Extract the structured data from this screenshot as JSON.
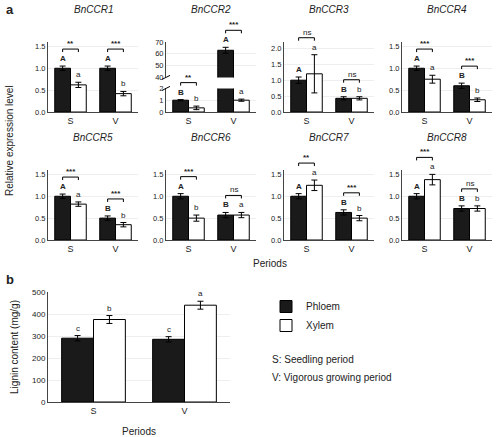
{
  "chart_data": [
    {
      "type": "bar",
      "title": "BnCCR1",
      "categories": [
        "S",
        "V"
      ],
      "series": [
        {
          "name": "Phloem",
          "color": "#1a1a1a",
          "values": [
            1.0,
            1.0
          ],
          "errors": [
            0.05,
            0.05
          ],
          "letters": [
            "A",
            "A"
          ]
        },
        {
          "name": "Xylem",
          "color": "#ffffff",
          "values": [
            0.62,
            0.42
          ],
          "errors": [
            0.06,
            0.05
          ],
          "letters": [
            "a",
            "b"
          ]
        }
      ],
      "significance": [
        "**",
        "***"
      ],
      "ylim": [
        0,
        1.6
      ],
      "yticks": [
        {
          "value": 0.0,
          "label": "0.0"
        },
        0.5,
        {
          "value": 1.0,
          "label": "1.0"
        },
        1.5
      ],
      "grid": true
    },
    {
      "type": "bar",
      "title": "BnCCR2",
      "categories": [
        "S",
        "V"
      ],
      "series": [
        {
          "name": "Phloem",
          "color": "#1a1a1a",
          "values": [
            1.0,
            63.0
          ],
          "errors": [
            0.05,
            2.5
          ],
          "letters": [
            "B",
            "A"
          ]
        },
        {
          "name": "Xylem",
          "color": "#ffffff",
          "values": [
            0.35,
            1.0
          ],
          "errors": [
            0.15,
            0.09
          ],
          "letters": [
            "b",
            "a"
          ]
        }
      ],
      "significance": [
        "**",
        "***"
      ],
      "ylim": [
        0,
        70
      ],
      "yticks": [
        0,
        1,
        2,
        40,
        50,
        60,
        70
      ],
      "grid": true
    },
    {
      "type": "bar",
      "title": "BnCCR3",
      "categories": [
        "S",
        "V"
      ],
      "series": [
        {
          "name": "Phloem",
          "color": "#1a1a1a",
          "values": [
            1.0,
            0.43
          ],
          "errors": [
            0.1,
            0.05
          ],
          "letters": [
            "A",
            "B"
          ]
        },
        {
          "name": "Xylem",
          "color": "#ffffff",
          "values": [
            1.2,
            0.43
          ],
          "errors": [
            0.6,
            0.05
          ],
          "letters": [
            "a",
            "b"
          ]
        }
      ],
      "significance": [
        "ns",
        "ns"
      ],
      "ylim": [
        0,
        2.2
      ],
      "yticks": [
        {
          "value": 0.0,
          "label": "0.0"
        },
        0.5,
        {
          "value": 1.0,
          "label": "1.0"
        },
        1.5,
        {
          "value": 2.0,
          "label": "2.0"
        }
      ],
      "grid": true
    },
    {
      "type": "bar",
      "title": "BnCCR4",
      "categories": [
        "S",
        "V"
      ],
      "series": [
        {
          "name": "Phloem",
          "color": "#1a1a1a",
          "values": [
            1.0,
            0.6
          ],
          "errors": [
            0.05,
            0.06
          ],
          "letters": [
            "A",
            "B"
          ]
        },
        {
          "name": "Xylem",
          "color": "#ffffff",
          "values": [
            0.75,
            0.28
          ],
          "errors": [
            0.09,
            0.04
          ],
          "letters": [
            "a",
            "b"
          ]
        }
      ],
      "significance": [
        "***",
        "***"
      ],
      "ylim": [
        0,
        1.6
      ],
      "yticks": [
        {
          "value": 0.0,
          "label": "0.0"
        },
        0.5,
        {
          "value": 1.0,
          "label": "1.0"
        },
        1.5
      ],
      "grid": true
    },
    {
      "type": "bar",
      "title": "BnCCR5",
      "categories": [
        "S",
        "V"
      ],
      "series": [
        {
          "name": "Phloem",
          "color": "#1a1a1a",
          "values": [
            1.0,
            0.5
          ],
          "errors": [
            0.05,
            0.05
          ],
          "letters": [
            "A",
            "B"
          ]
        },
        {
          "name": "Xylem",
          "color": "#ffffff",
          "values": [
            0.82,
            0.35
          ],
          "errors": [
            0.05,
            0.05
          ],
          "letters": [
            "a",
            "b"
          ]
        }
      ],
      "significance": [
        "***",
        "***"
      ],
      "ylim": [
        0,
        1.6
      ],
      "yticks": [
        {
          "value": 0.0,
          "label": "0.0"
        },
        0.5,
        {
          "value": 1.0,
          "label": "1.0"
        },
        1.5
      ],
      "grid": true
    },
    {
      "type": "bar",
      "title": "BnCCR6",
      "categories": [
        "S",
        "V"
      ],
      "series": [
        {
          "name": "Phloem",
          "color": "#1a1a1a",
          "values": [
            1.0,
            0.57
          ],
          "errors": [
            0.06,
            0.06
          ],
          "letters": [
            "A",
            "B"
          ]
        },
        {
          "name": "Xylem",
          "color": "#ffffff",
          "values": [
            0.5,
            0.57
          ],
          "errors": [
            0.07,
            0.06
          ],
          "letters": [
            "b",
            "a"
          ]
        }
      ],
      "significance": [
        "***",
        "ns"
      ],
      "ylim": [
        0,
        1.6
      ],
      "yticks": [
        {
          "value": 0.0,
          "label": "0.0"
        },
        0.5,
        {
          "value": 1.0,
          "label": "1.0"
        },
        1.5
      ],
      "grid": true
    },
    {
      "type": "bar",
      "title": "BnCCR7",
      "categories": [
        "S",
        "V"
      ],
      "series": [
        {
          "name": "Phloem",
          "color": "#1a1a1a",
          "values": [
            1.0,
            0.63
          ],
          "errors": [
            0.06,
            0.06
          ],
          "letters": [
            "A",
            "B"
          ]
        },
        {
          "name": "Xylem",
          "color": "#ffffff",
          "values": [
            1.25,
            0.5
          ],
          "errors": [
            0.12,
            0.06
          ],
          "letters": [
            "a",
            "b"
          ]
        }
      ],
      "significance": [
        "**",
        "***"
      ],
      "ylim": [
        0,
        1.6
      ],
      "yticks": [
        {
          "value": 0.0,
          "label": "0.0"
        },
        0.5,
        {
          "value": 1.0,
          "label": "1.0"
        },
        1.5
      ],
      "grid": true
    },
    {
      "type": "bar",
      "title": "BnCCR8",
      "categories": [
        "S",
        "V"
      ],
      "series": [
        {
          "name": "Phloem",
          "color": "#1a1a1a",
          "values": [
            1.0,
            0.72
          ],
          "errors": [
            0.06,
            0.06
          ],
          "letters": [
            "A",
            "B"
          ]
        },
        {
          "name": "Xylem",
          "color": "#ffffff",
          "values": [
            1.38,
            0.72
          ],
          "errors": [
            0.12,
            0.06
          ],
          "letters": [
            "a",
            "b"
          ]
        }
      ],
      "significance": [
        "***",
        "ns"
      ],
      "ylim": [
        0,
        1.6
      ],
      "yticks": [
        {
          "value": 0.0,
          "label": "0.0"
        },
        0.5,
        {
          "value": 1.0,
          "label": "1.0"
        },
        1.5
      ],
      "grid": true
    },
    {
      "type": "bar",
      "categories": [
        "S",
        "V"
      ],
      "xlabel": "Periods",
      "ylabel": "Lignin content (mg/g)",
      "series": [
        {
          "name": "Phloem",
          "color": "#1a1a1a",
          "values": [
            290,
            285
          ],
          "errors": [
            12,
            12
          ],
          "letters": [
            "c",
            "c"
          ]
        },
        {
          "name": "Xylem",
          "color": "#ffffff",
          "values": [
            375,
            440
          ],
          "errors": [
            18,
            18
          ],
          "letters": [
            "b",
            "a"
          ]
        }
      ],
      "ylim": [
        0,
        500
      ],
      "yticks": [
        0,
        100,
        200,
        300,
        400,
        500
      ],
      "grid": true
    }
  ],
  "ylabel": "Relative expression level",
  "xlabel": "Periods",
  "panel_labels": [
    "a",
    "b"
  ],
  "annotations": [
    "S: Seedling period",
    "V: Vigorous growing period"
  ],
  "edge_color": "#000000",
  "legend": "lower right"
}
